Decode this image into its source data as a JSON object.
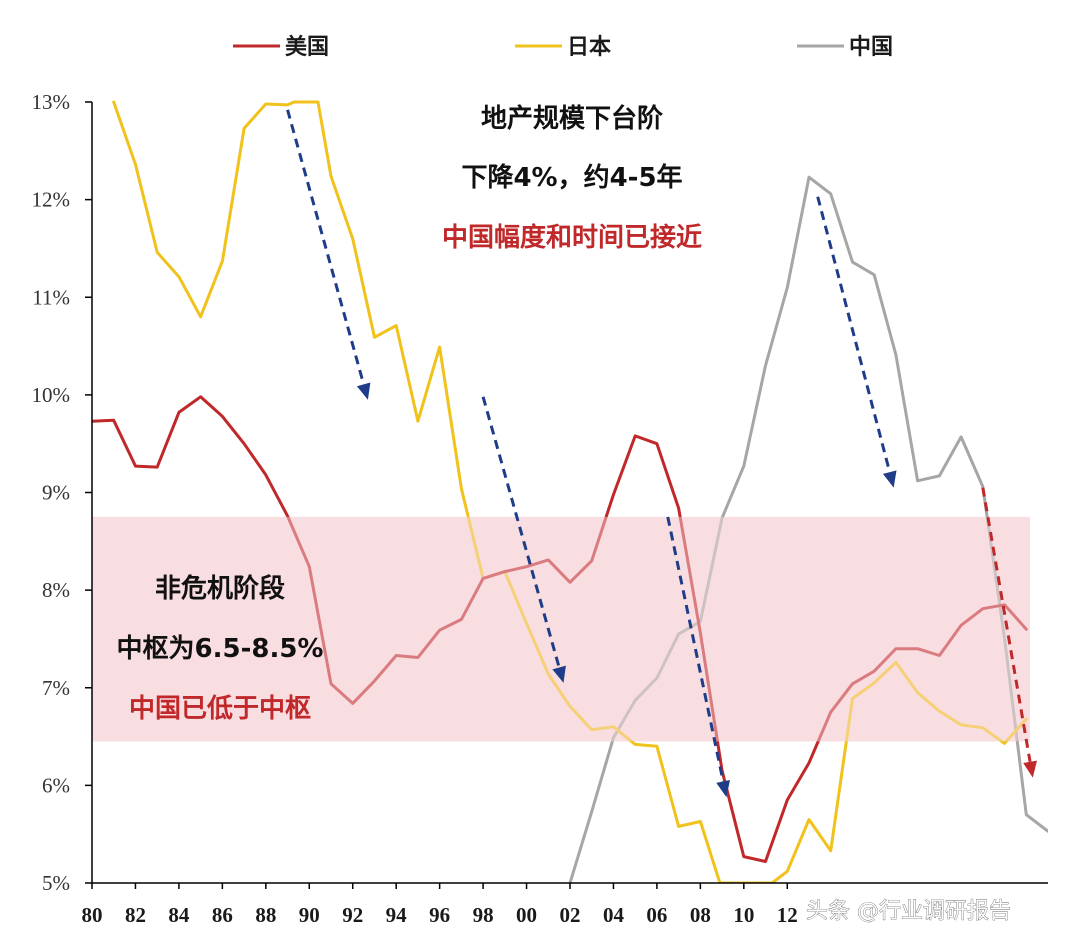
{
  "chart_data": {
    "type": "line",
    "y_axis": {
      "min": 5,
      "max": 13,
      "unit": "%",
      "ticks": [
        {
          "value": 5,
          "label": "5%"
        },
        {
          "value": 6,
          "label": "6%"
        },
        {
          "value": 7,
          "label": "7%"
        },
        {
          "value": 8,
          "label": "8%"
        },
        {
          "value": 9,
          "label": "9%"
        },
        {
          "value": 10,
          "label": "10%"
        },
        {
          "value": 11,
          "label": "11%"
        },
        {
          "value": 12,
          "label": "12%"
        },
        {
          "value": 13,
          "label": "13%"
        }
      ]
    },
    "x_axis": {
      "min": 1980,
      "max": 2024,
      "ticks": [
        {
          "value": 1980,
          "label": "80"
        },
        {
          "value": 1982,
          "label": "82"
        },
        {
          "value": 1984,
          "label": "84"
        },
        {
          "value": 1986,
          "label": "86"
        },
        {
          "value": 1988,
          "label": "88"
        },
        {
          "value": 1990,
          "label": "90"
        },
        {
          "value": 1992,
          "label": "92"
        },
        {
          "value": 1994,
          "label": "94"
        },
        {
          "value": 1996,
          "label": "96"
        },
        {
          "value": 1998,
          "label": "98"
        },
        {
          "value": 2000,
          "label": "00"
        },
        {
          "value": 2002,
          "label": "02"
        },
        {
          "value": 2004,
          "label": "04"
        },
        {
          "value": 2006,
          "label": "06"
        },
        {
          "value": 2008,
          "label": "08"
        },
        {
          "value": 2010,
          "label": "10"
        },
        {
          "value": 2012,
          "label": "12"
        }
      ]
    },
    "legend": {
      "position": "top",
      "items": [
        "美国",
        "日本",
        "中国"
      ]
    },
    "band": {
      "y_min": 6.45,
      "y_max": 8.75,
      "color": "#f7dadd"
    },
    "series": [
      {
        "name": "美国",
        "color": "#c0282a",
        "points": [
          [
            1980,
            9.73
          ],
          [
            1981,
            9.74
          ],
          [
            1982,
            9.27
          ],
          [
            1983,
            9.26
          ],
          [
            1984,
            9.82
          ],
          [
            1985,
            9.98
          ],
          [
            1986,
            9.78
          ],
          [
            1987,
            9.5
          ],
          [
            1988,
            9.18
          ],
          [
            1989,
            8.76
          ],
          [
            1990,
            8.24
          ],
          [
            1991,
            7.04
          ],
          [
            1992,
            6.84
          ],
          [
            1993,
            7.07
          ],
          [
            1994,
            7.33
          ],
          [
            1995,
            7.31
          ],
          [
            1996,
            7.59
          ],
          [
            1997,
            7.7
          ],
          [
            1998,
            8.12
          ],
          [
            1999,
            8.19
          ],
          [
            2000,
            8.24
          ],
          [
            2001,
            8.31
          ],
          [
            2002,
            8.08
          ],
          [
            2003,
            8.3
          ],
          [
            2004,
            8.98
          ],
          [
            2005,
            9.58
          ],
          [
            2006,
            9.5
          ],
          [
            2007,
            8.84
          ],
          [
            2008,
            7.56
          ],
          [
            2009,
            6.15
          ],
          [
            2010,
            5.27
          ],
          [
            2011,
            5.22
          ],
          [
            2012,
            5.85
          ],
          [
            2013,
            6.23
          ],
          [
            2014,
            6.75
          ],
          [
            2015,
            7.04
          ],
          [
            2016,
            7.17
          ],
          [
            2017,
            7.4
          ],
          [
            2018,
            7.4
          ],
          [
            2019,
            7.33
          ],
          [
            2020,
            7.64
          ],
          [
            2021,
            7.81
          ],
          [
            2022,
            7.85
          ],
          [
            2023,
            7.6
          ]
        ]
      },
      {
        "name": "日本",
        "color": "#f1c21b",
        "points": [
          [
            1981,
            13.0
          ],
          [
            1982,
            12.36
          ],
          [
            1983,
            11.46
          ],
          [
            1984,
            11.21
          ],
          [
            1985,
            10.8
          ],
          [
            1986,
            11.37
          ],
          [
            1987,
            12.73
          ],
          [
            1988,
            12.98
          ],
          [
            1989,
            12.97
          ],
          [
            1989.3,
            13.0
          ],
          [
            1990.4,
            13.0
          ],
          [
            1991,
            12.24
          ],
          [
            1992,
            11.6
          ],
          [
            1993,
            10.59
          ],
          [
            1994,
            10.71
          ],
          [
            1995,
            9.73
          ],
          [
            1996,
            10.49
          ],
          [
            1997,
            9.04
          ],
          [
            1998,
            8.12
          ],
          [
            1999,
            8.19
          ],
          [
            2000,
            7.66
          ],
          [
            2001,
            7.14
          ],
          [
            2002,
            6.81
          ],
          [
            2003,
            6.57
          ],
          [
            2004,
            6.6
          ],
          [
            2005,
            6.42
          ],
          [
            2006,
            6.4
          ],
          [
            2007,
            5.58
          ],
          [
            2008,
            5.63
          ],
          [
            2008.9,
            5.0
          ],
          [
            2011.3,
            5.0
          ],
          [
            2012,
            5.12
          ],
          [
            2013,
            5.65
          ],
          [
            2014,
            5.33
          ],
          [
            2015,
            6.89
          ],
          [
            2016,
            7.05
          ],
          [
            2017,
            7.26
          ],
          [
            2018,
            6.95
          ],
          [
            2019,
            6.76
          ],
          [
            2020,
            6.62
          ],
          [
            2021,
            6.59
          ],
          [
            2022,
            6.43
          ],
          [
            2023,
            6.68
          ]
        ]
      },
      {
        "name": "中国",
        "color": "#a6a6a6",
        "points": [
          [
            2002,
            5.0
          ],
          [
            2003,
            5.73
          ],
          [
            2004,
            6.49
          ],
          [
            2005,
            6.87
          ],
          [
            2006,
            7.1
          ],
          [
            2007,
            7.55
          ],
          [
            2008,
            7.68
          ],
          [
            2009,
            8.74
          ],
          [
            2010,
            9.27
          ],
          [
            2011,
            10.3
          ],
          [
            2012,
            11.1
          ],
          [
            2013,
            12.23
          ],
          [
            2014,
            12.06
          ],
          [
            2015,
            11.36
          ],
          [
            2016,
            11.23
          ],
          [
            2017,
            10.41
          ],
          [
            2018,
            9.12
          ],
          [
            2019,
            9.17
          ],
          [
            2020,
            9.57
          ],
          [
            2021,
            9.06
          ],
          [
            2022,
            7.51
          ],
          [
            2023,
            5.7
          ],
          [
            2024,
            5.53
          ]
        ]
      }
    ],
    "arrows": [
      {
        "color": "#1f3c88",
        "from": [
          1989.0,
          12.92
        ],
        "to": [
          1992.7,
          9.95
        ]
      },
      {
        "color": "#1f3c88",
        "from": [
          1998.0,
          9.98
        ],
        "to": [
          2001.7,
          7.05
        ]
      },
      {
        "color": "#1f3c88",
        "from": [
          2006.5,
          8.75
        ],
        "to": [
          2009.2,
          5.88
        ]
      },
      {
        "color": "#1f3c88",
        "from": [
          2013.4,
          12.03
        ],
        "to": [
          2016.9,
          9.05
        ]
      },
      {
        "color": "#c0282a",
        "from": [
          2021.0,
          9.05
        ],
        "to": [
          2023.3,
          6.08
        ]
      }
    ],
    "annotations": [
      {
        "lines": [
          {
            "text": "地产规模下台阶",
            "color": "black"
          },
          {
            "text": "下降4%，约4-5年",
            "color": "black"
          },
          {
            "text": "中国幅度和时间已接近",
            "color": "red"
          }
        ]
      },
      {
        "lines": [
          {
            "text": "非危机阶段",
            "color": "black"
          },
          {
            "text": "中枢为6.5-8.5%",
            "color": "black"
          },
          {
            "text": "中国已低于中枢",
            "color": "red"
          }
        ]
      }
    ]
  },
  "watermark": "头条 @行业调研报告"
}
